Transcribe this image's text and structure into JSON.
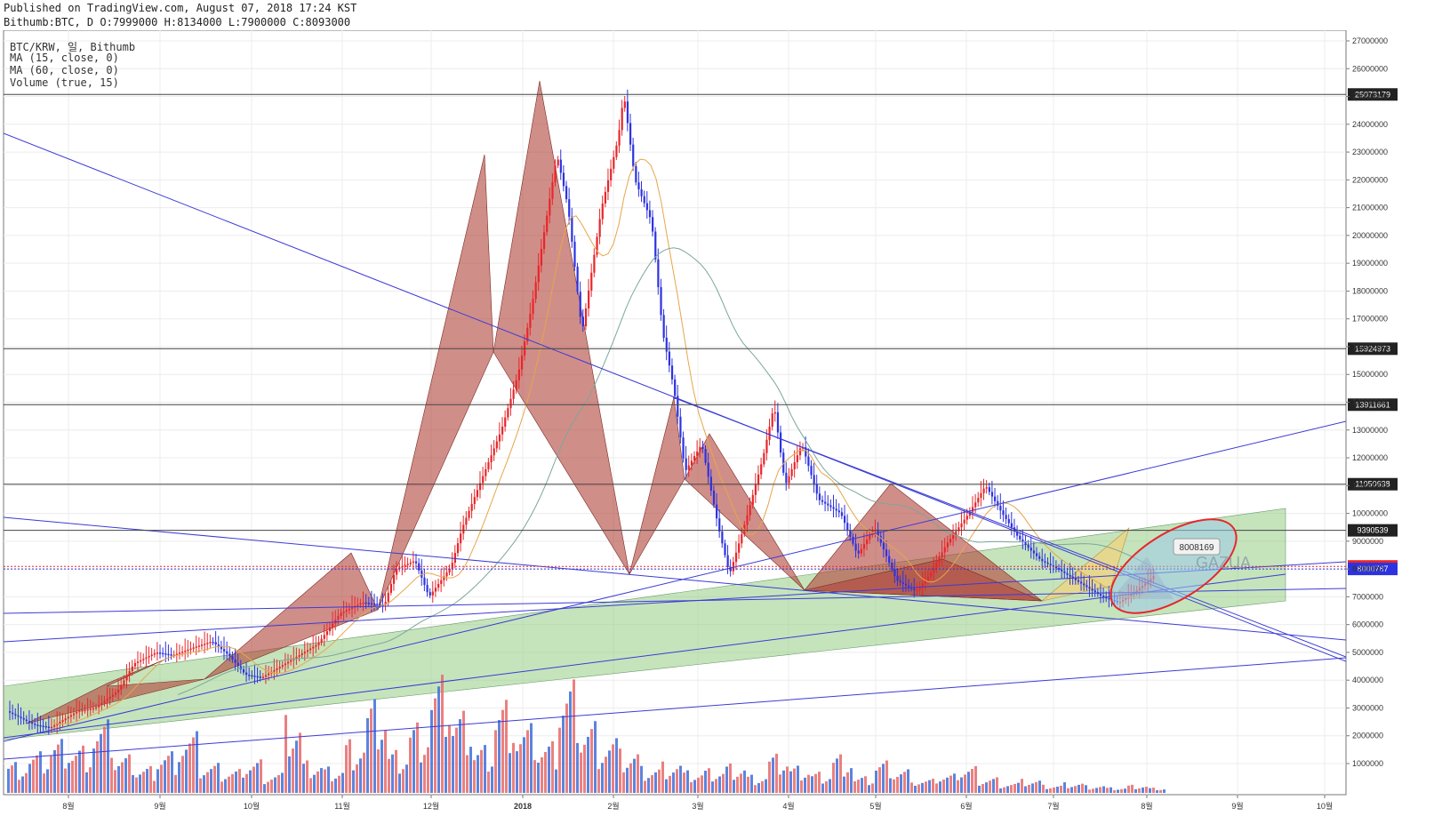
{
  "header": {
    "published": "Published on TradingView.com, August 07, 2018 17:24 KST",
    "ohlc": "Bithumb:BTC, D O:7999000 H:8134000 L:7900000 C:8093000"
  },
  "legend": {
    "symbol": "BTC/KRW, 일, Bithumb",
    "ma15": "MA (15, close, 0)",
    "ma60": "MA (60, close, 0)",
    "volume": "Volume (true, 15)"
  },
  "annotation": {
    "callout": "8008169",
    "watermark": "GAZUA"
  },
  "chart_data": {
    "type": "candlestick",
    "x_ticks": [
      "8월",
      "9월",
      "10월",
      "11월",
      "12월",
      "2018",
      "2월",
      "3월",
      "4월",
      "5월",
      "6월",
      "7월",
      "8월",
      "9월",
      "10월"
    ],
    "y_ticks": [
      1000000,
      2000000,
      3000000,
      4000000,
      5000000,
      6000000,
      7000000,
      8000000,
      9000000,
      10000000,
      11000000,
      12000000,
      13000000,
      14000000,
      15000000,
      16000000,
      17000000,
      18000000,
      19000000,
      20000000,
      21000000,
      22000000,
      23000000,
      24000000,
      25000000,
      26000000,
      27000000
    ],
    "y_range": [
      0,
      27500000
    ],
    "horizontal_levels": [
      25073179,
      15924973,
      13911661,
      11050638,
      9390539
    ],
    "level_labels": [
      "25073179",
      "15924973",
      "13911661",
      "11050638",
      "9390539"
    ],
    "price_labels": [
      {
        "text": "8093000",
        "value": 8093000,
        "color": "#e8262a"
      },
      {
        "text": "8000787",
        "value": 8000787,
        "color": "#2d32e0"
      }
    ],
    "price_path": [
      [
        0,
        2.8
      ],
      [
        8,
        2.4
      ],
      [
        14,
        2.3
      ],
      [
        24,
        2.9
      ],
      [
        30,
        3.0
      ],
      [
        38,
        3.6
      ],
      [
        44,
        4.6
      ],
      [
        52,
        5.0
      ],
      [
        58,
        4.9
      ],
      [
        66,
        5.2
      ],
      [
        72,
        5.4
      ],
      [
        78,
        4.9
      ],
      [
        84,
        4.2
      ],
      [
        90,
        4.1
      ],
      [
        100,
        4.7
      ],
      [
        110,
        5.3
      ],
      [
        118,
        6.4
      ],
      [
        126,
        6.8
      ],
      [
        134,
        6.7
      ],
      [
        138,
        8.0
      ],
      [
        145,
        8.3
      ],
      [
        150,
        7.0
      ],
      [
        158,
        8.1
      ],
      [
        162,
        9.5
      ],
      [
        168,
        11.0
      ],
      [
        176,
        13.0
      ],
      [
        182,
        15.0
      ],
      [
        187,
        17.5
      ],
      [
        192,
        20.5
      ],
      [
        196,
        22.9
      ],
      [
        200,
        21.0
      ],
      [
        205,
        16.5
      ],
      [
        212,
        21.0
      ],
      [
        218,
        23.5
      ],
      [
        220,
        25.1
      ],
      [
        224,
        22.0
      ],
      [
        230,
        20.5
      ],
      [
        234,
        16.5
      ],
      [
        238,
        14.5
      ],
      [
        242,
        11.5
      ],
      [
        248,
        12.5
      ],
      [
        254,
        9.5
      ],
      [
        258,
        7.8
      ],
      [
        264,
        9.8
      ],
      [
        270,
        12.0
      ],
      [
        274,
        13.9
      ],
      [
        278,
        11.0
      ],
      [
        284,
        12.5
      ],
      [
        290,
        10.5
      ],
      [
        298,
        10.0
      ],
      [
        304,
        8.5
      ],
      [
        310,
        9.5
      ],
      [
        318,
        7.6
      ],
      [
        325,
        7.2
      ],
      [
        330,
        7.8
      ],
      [
        336,
        8.9
      ],
      [
        344,
        10.0
      ],
      [
        350,
        11.0
      ],
      [
        356,
        10.0
      ],
      [
        362,
        9.1
      ],
      [
        370,
        8.3
      ],
      [
        376,
        8.0
      ],
      [
        384,
        7.5
      ],
      [
        392,
        7.0
      ],
      [
        398,
        6.8
      ],
      [
        404,
        7.2
      ],
      [
        410,
        7.7
      ],
      [
        416,
        8.5
      ],
      [
        420,
        9.3
      ],
      [
        424,
        9.0
      ],
      [
        428,
        8.6
      ],
      [
        432,
        8.09
      ]
    ],
    "volume_samples": [
      1.2,
      1.5,
      2.0,
      1.8,
      2.6,
      1.4,
      1.0,
      1.6,
      2.2,
      1.1,
      0.9,
      1.3,
      0.8,
      2.8,
      1.2,
      1.0,
      2.1,
      3.4,
      1.6,
      2.7,
      4.2,
      3.0,
      1.8,
      3.6,
      2.5,
      1.9,
      4.3,
      2.8,
      2.2,
      1.6,
      1.0,
      1.2,
      0.8,
      0.9,
      1.1,
      0.7,
      1.4,
      1.0,
      0.8,
      1.5,
      0.6,
      1.2,
      0.9,
      0.5,
      0.7,
      1.0,
      0.6,
      0.4,
      0.5,
      0.3,
      0.4,
      0.3,
      0.2,
      0.3,
      0.2
    ]
  }
}
